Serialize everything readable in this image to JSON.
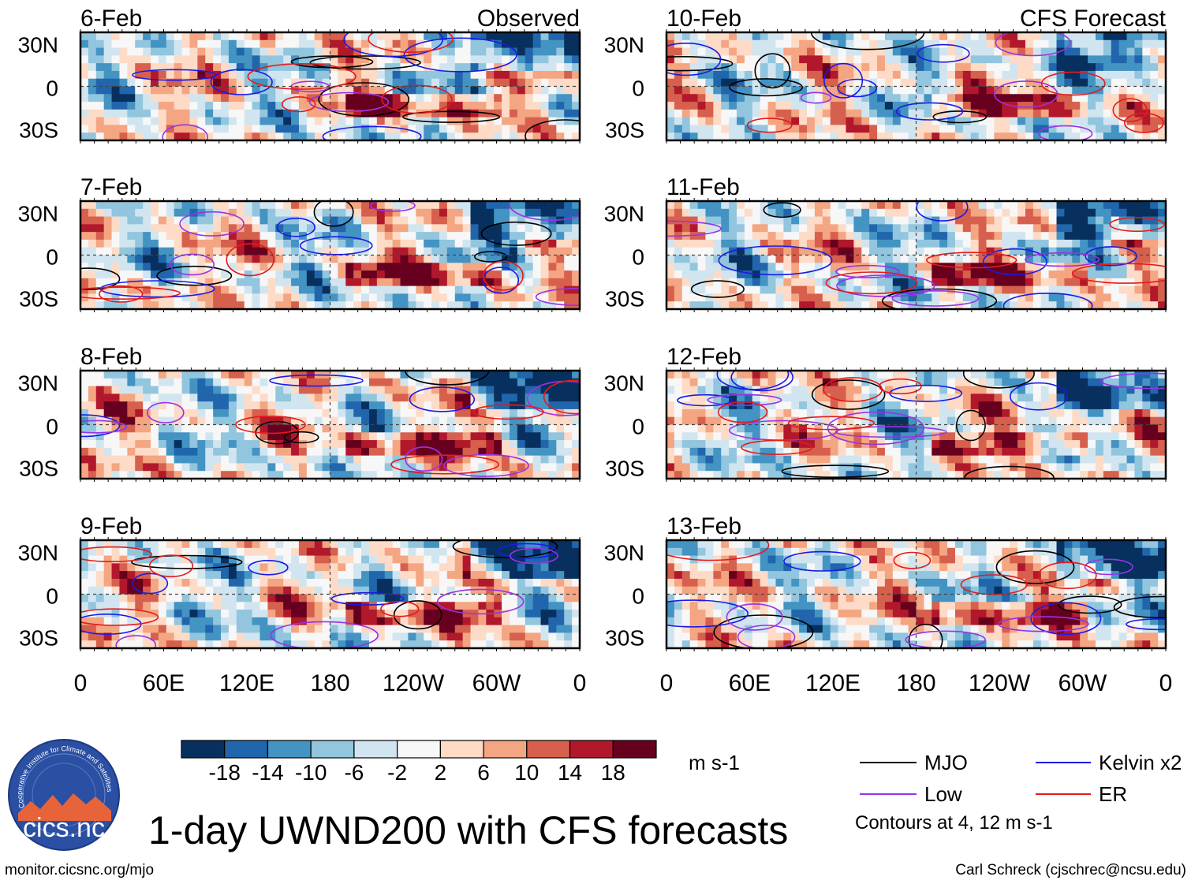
{
  "title": "1-day UWND200 with CFS forecasts",
  "source_link": "monitor.cicsnc.org/mjo",
  "credit": "Carl Schreck (cjschrec@ncsu.edu)",
  "logo": {
    "text": "cics.nc",
    "ring_text": "Cooperative Institute for Climate and Satellites"
  },
  "colorbar": {
    "units": "m s-1",
    "tick_labels": [
      "-18",
      "-14",
      "-10",
      "-6",
      "-2",
      "2",
      "6",
      "10",
      "14",
      "18"
    ],
    "colors": [
      "#08305f",
      "#2166ac",
      "#4393c3",
      "#92c5de",
      "#d1e5f0",
      "#f7f7f7",
      "#fddbc7",
      "#f4a582",
      "#d6604d",
      "#b2182b",
      "#67001f"
    ]
  },
  "legend": {
    "items": [
      {
        "label": "MJO",
        "color": "#000000"
      },
      {
        "label": "Kelvin x2",
        "color": "#1a1ae6"
      },
      {
        "label": "Low",
        "color": "#9933e6"
      },
      {
        "label": "ER",
        "color": "#e61a1a"
      }
    ],
    "contour_note": "Contours at 4, 12 m s-1"
  },
  "chart_data": {
    "type": "heatmap",
    "variable": "200-hPa zonal wind anomaly",
    "units": "m s-1",
    "levels": [
      -18,
      -14,
      -10,
      -6,
      -2,
      2,
      6,
      10,
      14,
      18
    ],
    "x_ticks": [
      "0",
      "60E",
      "120E",
      "180",
      "120W",
      "60W",
      "0"
    ],
    "y_ticks": [
      "30N",
      "0",
      "30S"
    ],
    "x_range": [
      0,
      360
    ],
    "y_range": [
      -40,
      40
    ],
    "columns": [
      {
        "header": "Observed",
        "panels": [
          "6-Feb",
          "7-Feb",
          "8-Feb",
          "9-Feb"
        ]
      },
      {
        "header": "CFS Forecast",
        "panels": [
          "10-Feb",
          "11-Feb",
          "12-Feb",
          "13-Feb"
        ]
      }
    ]
  }
}
